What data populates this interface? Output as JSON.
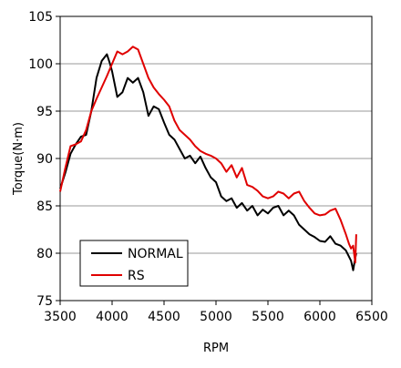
{
  "chart_data": {
    "type": "line",
    "title": "",
    "xlabel": "RPM",
    "ylabel": "Torque(N·m)",
    "xlim": [
      3500,
      6500
    ],
    "ylim": [
      75,
      105
    ],
    "xticks": [
      3500,
      4000,
      4500,
      5000,
      5500,
      6000,
      6500
    ],
    "yticks": [
      75,
      80,
      85,
      90,
      95,
      100,
      105
    ],
    "grid": "horizontal",
    "legend_position": "bottom-left",
    "series": [
      {
        "name": "NORMAL",
        "color": "#000000",
        "x": [
          3500,
          3550,
          3600,
          3650,
          3700,
          3750,
          3800,
          3850,
          3900,
          3950,
          3980,
          4000,
          4050,
          4100,
          4150,
          4200,
          4250,
          4300,
          4350,
          4400,
          4450,
          4500,
          4550,
          4600,
          4650,
          4700,
          4750,
          4800,
          4850,
          4900,
          4950,
          5000,
          5050,
          5100,
          5150,
          5200,
          5250,
          5300,
          5350,
          5400,
          5450,
          5500,
          5550,
          5600,
          5650,
          5700,
          5750,
          5800,
          5850,
          5900,
          5950,
          6000,
          6050,
          6100,
          6150,
          6200,
          6250,
          6300,
          6320,
          6340,
          6350
        ],
        "y": [
          86.8,
          88.5,
          90.5,
          91.5,
          92.3,
          92.5,
          95.0,
          98.5,
          100.3,
          101.0,
          100.0,
          99.2,
          96.5,
          97.0,
          98.5,
          98.0,
          98.5,
          97.0,
          94.5,
          95.5,
          95.2,
          93.8,
          92.5,
          92.0,
          91.0,
          90.0,
          90.3,
          89.5,
          90.2,
          89.0,
          88.0,
          87.5,
          86.0,
          85.5,
          85.8,
          84.8,
          85.3,
          84.5,
          85.0,
          84.0,
          84.6,
          84.2,
          84.8,
          85.0,
          84.0,
          84.5,
          84.0,
          83.0,
          82.5,
          82.0,
          81.7,
          81.3,
          81.2,
          81.8,
          81.0,
          80.8,
          80.3,
          79.2,
          78.2,
          79.5,
          80.0
        ]
      },
      {
        "name": "RS",
        "color": "#e00000",
        "x": [
          3500,
          3550,
          3600,
          3650,
          3700,
          3750,
          3800,
          3850,
          3900,
          3950,
          4000,
          4050,
          4100,
          4150,
          4200,
          4250,
          4300,
          4350,
          4400,
          4450,
          4500,
          4550,
          4600,
          4650,
          4700,
          4750,
          4800,
          4850,
          4900,
          4950,
          5000,
          5050,
          5100,
          5150,
          5200,
          5250,
          5300,
          5350,
          5400,
          5450,
          5500,
          5550,
          5600,
          5650,
          5700,
          5750,
          5800,
          5850,
          5900,
          5950,
          6000,
          6050,
          6100,
          6150,
          6200,
          6250,
          6280,
          6300,
          6320,
          6340,
          6350
        ],
        "y": [
          86.5,
          89.0,
          91.3,
          91.5,
          91.8,
          93.0,
          95.0,
          96.3,
          97.5,
          98.7,
          100.0,
          101.3,
          101.0,
          101.3,
          101.8,
          101.5,
          100.0,
          98.5,
          97.5,
          96.8,
          96.2,
          95.5,
          94.0,
          93.0,
          92.5,
          92.0,
          91.3,
          90.8,
          90.5,
          90.3,
          90.0,
          89.5,
          88.6,
          89.3,
          88.0,
          89.0,
          87.2,
          87.0,
          86.6,
          86.0,
          85.8,
          86.0,
          86.5,
          86.3,
          85.8,
          86.3,
          86.5,
          85.5,
          84.8,
          84.2,
          84.0,
          84.1,
          84.5,
          84.7,
          83.5,
          82.0,
          81.0,
          80.5,
          80.8,
          79.0,
          82.0
        ]
      }
    ]
  }
}
